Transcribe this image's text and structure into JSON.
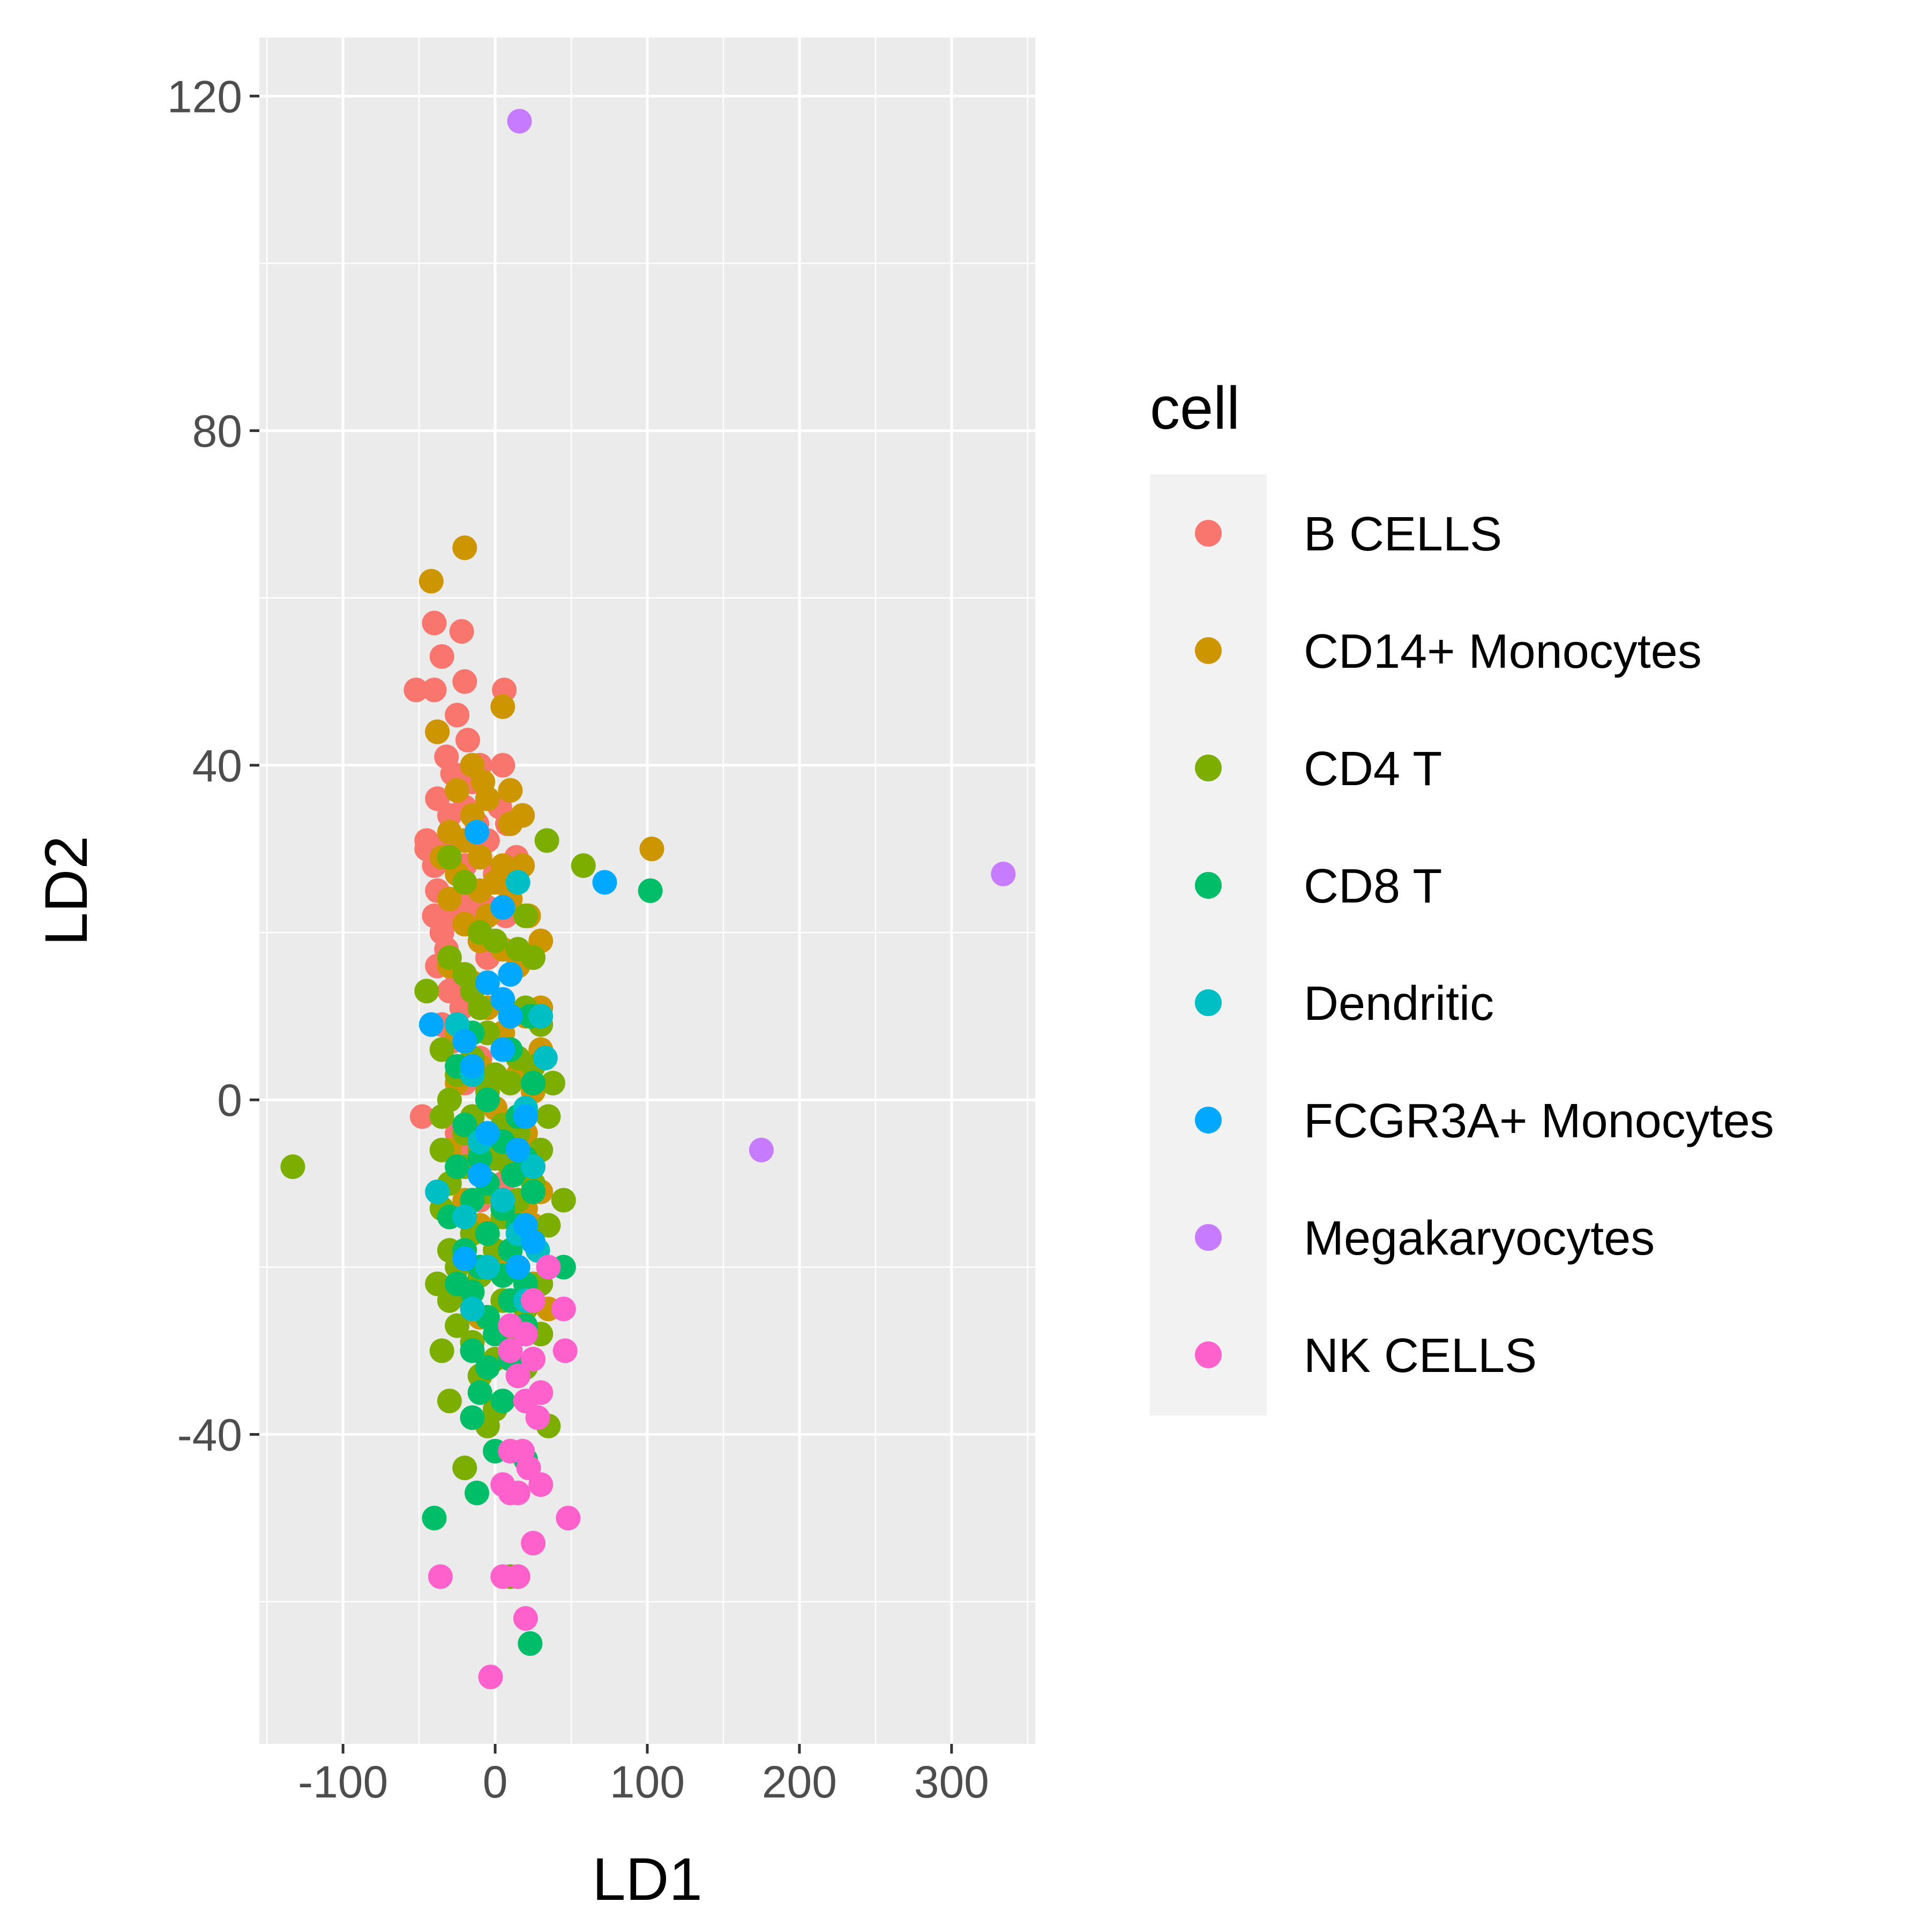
{
  "chart_data": {
    "type": "scatter",
    "xlabel": "LD1",
    "ylabel": "LD2",
    "xlim": [
      -155,
      355
    ],
    "ylim": [
      -77,
      127
    ],
    "x_ticks": [
      -100,
      0,
      100,
      200,
      300
    ],
    "x_tick_labels": [
      "-100",
      "0",
      "100",
      "200",
      "300"
    ],
    "y_ticks": [
      -40,
      0,
      40,
      80,
      120
    ],
    "y_tick_labels": [
      "-40",
      "0",
      "40",
      "80",
      "120"
    ],
    "grid": true,
    "legend": {
      "title": "cell",
      "position": "right",
      "entries": [
        "B CELLS",
        "CD14+ Monocytes",
        "CD4 T",
        "CD8 T",
        "Dendritic",
        "FCGR3A+ Monocytes",
        "Megakaryocytes",
        "NK CELLS"
      ]
    },
    "series": [
      {
        "name": "B CELLS",
        "color": "#F8766D",
        "points": [
          [
            -40,
            57
          ],
          [
            -22,
            56
          ],
          [
            -35,
            53
          ],
          [
            -20,
            50
          ],
          [
            -52,
            49
          ],
          [
            -40,
            49
          ],
          [
            6,
            49
          ],
          [
            -25,
            46
          ],
          [
            -38,
            44
          ],
          [
            -18,
            43
          ],
          [
            -32,
            41
          ],
          [
            -10,
            40
          ],
          [
            5,
            40
          ],
          [
            -28,
            39
          ],
          [
            -15,
            38
          ],
          [
            -38,
            36
          ],
          [
            -20,
            35
          ],
          [
            3,
            35
          ],
          [
            -30,
            34
          ],
          [
            -12,
            33
          ],
          [
            8,
            33
          ],
          [
            -45,
            31
          ],
          [
            -25,
            31
          ],
          [
            -5,
            31
          ],
          [
            -35,
            30
          ],
          [
            -45,
            30
          ],
          [
            14,
            29
          ],
          [
            -40,
            28
          ],
          [
            -20,
            28
          ],
          [
            0,
            27
          ],
          [
            -38,
            25
          ],
          [
            -25,
            24
          ],
          [
            -12,
            24
          ],
          [
            -5,
            23
          ],
          [
            -40,
            22
          ],
          [
            -30,
            22
          ],
          [
            -20,
            22
          ],
          [
            -35,
            20
          ],
          [
            7,
            22
          ],
          [
            -32,
            18
          ],
          [
            -38,
            16
          ],
          [
            -5,
            17
          ],
          [
            -25,
            15
          ],
          [
            -30,
            13
          ],
          [
            -22,
            11
          ],
          [
            -35,
            9
          ],
          [
            -28,
            7
          ],
          [
            -10,
            5
          ],
          [
            -35,
            6
          ],
          [
            -20,
            2
          ],
          [
            -48,
            -2
          ],
          [
            -25,
            -4
          ],
          [
            -15,
            -6
          ],
          [
            5,
            -10
          ],
          [
            -10,
            -12
          ]
        ]
      },
      {
        "name": "CD14+ Monocytes",
        "color": "#CD9600",
        "points": [
          [
            -20,
            66
          ],
          [
            -42,
            62
          ],
          [
            5,
            47
          ],
          [
            -38,
            44
          ],
          [
            -15,
            40
          ],
          [
            -8,
            38
          ],
          [
            10,
            37
          ],
          [
            -25,
            37
          ],
          [
            -5,
            36
          ],
          [
            18,
            34
          ],
          [
            -15,
            34
          ],
          [
            -30,
            32
          ],
          [
            10,
            33
          ],
          [
            -20,
            31
          ],
          [
            -35,
            29
          ],
          [
            -10,
            29
          ],
          [
            -25,
            27
          ],
          [
            5,
            28
          ],
          [
            18,
            28
          ],
          [
            -20,
            26
          ],
          [
            0,
            26
          ],
          [
            -10,
            25
          ],
          [
            -30,
            24
          ],
          [
            10,
            24
          ],
          [
            -5,
            22
          ],
          [
            22,
            22
          ],
          [
            -20,
            21
          ],
          [
            30,
            19
          ],
          [
            -10,
            19
          ],
          [
            5,
            18
          ],
          [
            -30,
            16
          ],
          [
            15,
            16
          ],
          [
            -15,
            14
          ],
          [
            30,
            11
          ],
          [
            -5,
            11
          ],
          [
            20,
            10
          ],
          [
            -25,
            8
          ],
          [
            5,
            8
          ],
          [
            30,
            6
          ],
          [
            -10,
            4
          ],
          [
            15,
            3
          ],
          [
            -25,
            2
          ],
          [
            25,
            1
          ],
          [
            0,
            -1
          ],
          [
            -15,
            -3
          ],
          [
            20,
            -4
          ],
          [
            -30,
            -6
          ],
          [
            10,
            -8
          ],
          [
            -5,
            -10
          ],
          [
            30,
            -11
          ],
          [
            -20,
            -12
          ],
          [
            20,
            -13
          ],
          [
            25,
            -15
          ],
          [
            -10,
            -15
          ],
          [
            -20,
            -18
          ],
          [
            5,
            -20
          ],
          [
            -25,
            -22
          ],
          [
            15,
            -24
          ],
          [
            35,
            -25
          ],
          [
            25,
            -22
          ],
          [
            -10,
            -26
          ],
          [
            103,
            30
          ]
        ]
      },
      {
        "name": "CD4 T",
        "color": "#7CAE00",
        "points": [
          [
            -133,
            -8
          ],
          [
            34,
            31
          ],
          [
            58,
            28
          ],
          [
            -30,
            29
          ],
          [
            -20,
            26
          ],
          [
            20,
            22
          ],
          [
            -10,
            20
          ],
          [
            0,
            19
          ],
          [
            15,
            18
          ],
          [
            -30,
            17
          ],
          [
            -20,
            15
          ],
          [
            25,
            17
          ],
          [
            -15,
            13
          ],
          [
            -45,
            13
          ],
          [
            20,
            11
          ],
          [
            -10,
            11
          ],
          [
            30,
            9
          ],
          [
            -5,
            8
          ],
          [
            -35,
            6
          ],
          [
            -15,
            5
          ],
          [
            15,
            5
          ],
          [
            25,
            4
          ],
          [
            0,
            3
          ],
          [
            -25,
            3
          ],
          [
            10,
            2
          ],
          [
            38,
            2
          ],
          [
            -5,
            1
          ],
          [
            -30,
            0
          ],
          [
            20,
            -1
          ],
          [
            -15,
            -2
          ],
          [
            35,
            -2
          ],
          [
            5,
            -3
          ],
          [
            -35,
            -2
          ],
          [
            -20,
            -4
          ],
          [
            15,
            -4
          ],
          [
            -10,
            -6
          ],
          [
            30,
            -6
          ],
          [
            0,
            -7
          ],
          [
            -35,
            -6
          ],
          [
            -20,
            -8
          ],
          [
            10,
            -8
          ],
          [
            -30,
            -10
          ],
          [
            25,
            -10
          ],
          [
            -5,
            -11
          ],
          [
            15,
            -12
          ],
          [
            45,
            -12
          ],
          [
            -35,
            -13
          ],
          [
            -20,
            -14
          ],
          [
            5,
            -14
          ],
          [
            35,
            -15
          ],
          [
            -15,
            -16
          ],
          [
            25,
            -17
          ],
          [
            -30,
            -18
          ],
          [
            0,
            -18
          ],
          [
            -25,
            -20
          ],
          [
            15,
            -20
          ],
          [
            -10,
            -21
          ],
          [
            30,
            -22
          ],
          [
            -38,
            -22
          ],
          [
            -20,
            -23
          ],
          [
            5,
            -24
          ],
          [
            -30,
            -24
          ],
          [
            20,
            -25
          ],
          [
            -5,
            -26
          ],
          [
            -25,
            -27
          ],
          [
            10,
            -28
          ],
          [
            30,
            -28
          ],
          [
            -15,
            -29
          ],
          [
            -35,
            -30
          ],
          [
            0,
            -31
          ],
          [
            20,
            -32
          ],
          [
            -10,
            -33
          ],
          [
            30,
            -35
          ],
          [
            -30,
            -36
          ],
          [
            0,
            -37
          ],
          [
            -5,
            -39
          ],
          [
            35,
            -39
          ],
          [
            -20,
            -44
          ],
          [
            10,
            -57
          ],
          [
            15,
            -57
          ]
        ]
      },
      {
        "name": "CD8 T",
        "color": "#00BE67",
        "points": [
          [
            102,
            25
          ],
          [
            23,
            10
          ],
          [
            -15,
            8
          ],
          [
            10,
            6
          ],
          [
            -25,
            4
          ],
          [
            25,
            2
          ],
          [
            -5,
            0
          ],
          [
            15,
            -2
          ],
          [
            -20,
            -3
          ],
          [
            5,
            -5
          ],
          [
            -10,
            -7
          ],
          [
            20,
            -7
          ],
          [
            -25,
            -8
          ],
          [
            12,
            -9
          ],
          [
            -5,
            -10
          ],
          [
            25,
            -11
          ],
          [
            -15,
            -12
          ],
          [
            5,
            -13
          ],
          [
            -30,
            -14
          ],
          [
            15,
            -15
          ],
          [
            -5,
            -16
          ],
          [
            25,
            -17
          ],
          [
            -20,
            -18
          ],
          [
            10,
            -18
          ],
          [
            45,
            -20
          ],
          [
            -10,
            -20
          ],
          [
            5,
            -21
          ],
          [
            -25,
            -22
          ],
          [
            20,
            -22
          ],
          [
            -15,
            -23
          ],
          [
            10,
            -24
          ],
          [
            -5,
            -26
          ],
          [
            20,
            -27
          ],
          [
            0,
            -28
          ],
          [
            -15,
            -30
          ],
          [
            10,
            -31
          ],
          [
            -5,
            -32
          ],
          [
            15,
            -33
          ],
          [
            -10,
            -35
          ],
          [
            5,
            -36
          ],
          [
            -15,
            -38
          ],
          [
            0,
            -42
          ],
          [
            20,
            -43
          ],
          [
            -12,
            -47
          ],
          [
            -40,
            -50
          ],
          [
            23,
            -65
          ]
        ]
      },
      {
        "name": "Dendritic",
        "color": "#00BFC4",
        "points": [
          [
            15,
            26
          ],
          [
            30,
            10
          ],
          [
            -25,
            9
          ],
          [
            33,
            5
          ],
          [
            -15,
            3
          ],
          [
            20,
            -1
          ],
          [
            -10,
            -5
          ],
          [
            25,
            -8
          ],
          [
            -38,
            -11
          ],
          [
            5,
            -12
          ],
          [
            -20,
            -14
          ],
          [
            15,
            -16
          ],
          [
            28,
            -18
          ],
          [
            -5,
            -20
          ],
          [
            20,
            -24
          ],
          [
            -15,
            -25
          ]
        ]
      },
      {
        "name": "FCGR3A+ Monocytes",
        "color": "#00A9FF",
        "points": [
          [
            72,
            26
          ],
          [
            -12,
            32
          ],
          [
            5,
            23
          ],
          [
            10,
            15
          ],
          [
            -5,
            14
          ],
          [
            5,
            12
          ],
          [
            10,
            10
          ],
          [
            -42,
            9
          ],
          [
            -20,
            7
          ],
          [
            5,
            6
          ],
          [
            -15,
            4
          ],
          [
            20,
            -2
          ],
          [
            -5,
            -4
          ],
          [
            15,
            -6
          ],
          [
            -10,
            -9
          ],
          [
            20,
            -15
          ],
          [
            25,
            -17
          ],
          [
            -20,
            -19
          ],
          [
            15,
            -20
          ]
        ]
      },
      {
        "name": "Megakaryocytes",
        "color": "#C77CFF",
        "points": [
          [
            16,
            117
          ],
          [
            334,
            27
          ],
          [
            175,
            -6
          ]
        ]
      },
      {
        "name": "NK CELLS",
        "color": "#FF61CC",
        "points": [
          [
            35,
            -20
          ],
          [
            45,
            -25
          ],
          [
            25,
            -24
          ],
          [
            10,
            -27
          ],
          [
            20,
            -28
          ],
          [
            46,
            -30
          ],
          [
            10,
            -30
          ],
          [
            25,
            -31
          ],
          [
            15,
            -33
          ],
          [
            30,
            -35
          ],
          [
            20,
            -36
          ],
          [
            28,
            -38
          ],
          [
            10,
            -42
          ],
          [
            18,
            -42
          ],
          [
            22,
            -44
          ],
          [
            5,
            -46
          ],
          [
            30,
            -46
          ],
          [
            10,
            -47
          ],
          [
            15,
            -47
          ],
          [
            48,
            -50
          ],
          [
            25,
            -53
          ],
          [
            -36,
            -57
          ],
          [
            5,
            -57
          ],
          [
            15,
            -57
          ],
          [
            20,
            -62
          ],
          [
            -3,
            -69
          ]
        ]
      }
    ]
  }
}
